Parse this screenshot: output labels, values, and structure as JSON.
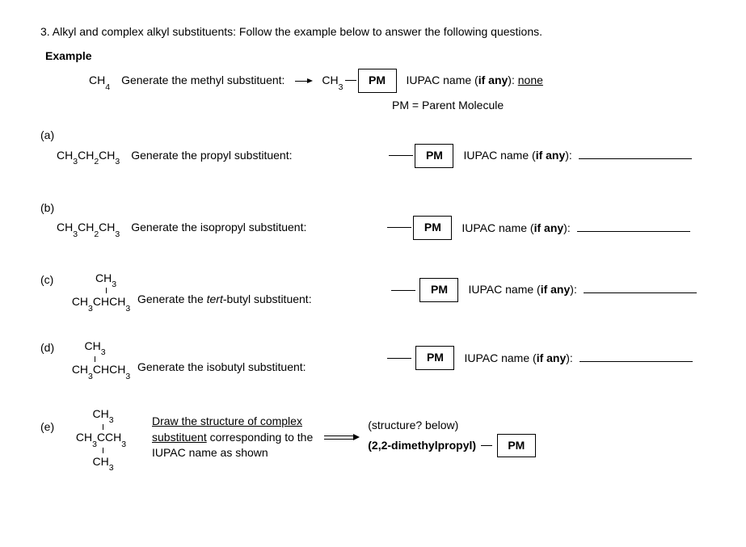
{
  "colors": {
    "text": "#000000",
    "background": "#ffffff",
    "border": "#000000"
  },
  "typography": {
    "font_family": "Arial, Helvetica, sans-serif",
    "base_size_pt": 11
  },
  "intro": "3. Alkyl and complex alkyl substituents: Follow the example below to answer the following questions.",
  "example_label": "Example",
  "example": {
    "precursor_formula_html": "CH<sub>4</sub>",
    "instruction": "Generate the methyl substituent:",
    "product_formula_html": "CH<sub>3</sub>",
    "pm_label": "PM",
    "iupac_prefix": "IUPAC name (",
    "if_any": "if any",
    "iupac_suffix": "): ",
    "iupac_answer": "none"
  },
  "pm_caption": "PM = Parent Molecule",
  "parts": {
    "a": {
      "label": "(a)",
      "precursor_formula_html": "CH<sub>3</sub>CH<sub>2</sub>CH<sub>3</sub>",
      "instruction": "Generate the propyl substituent:",
      "pm_label": "PM",
      "iupac_prefix": "IUPAC name (",
      "if_any": "if any",
      "iupac_suffix": "): "
    },
    "b": {
      "label": "(b)",
      "precursor_formula_html": "CH<sub>3</sub>CH<sub>2</sub>CH<sub>3</sub>",
      "instruction": "Generate the isopropyl substituent:",
      "pm_label": "PM",
      "iupac_prefix": "IUPAC name (",
      "if_any": "if any",
      "iupac_suffix": "): "
    },
    "c": {
      "label": "(c)",
      "top_formula_html": "CH<sub>3</sub>",
      "precursor_formula_html": "CH<sub>3</sub>CHCH<sub>3</sub>",
      "instruction_pre": "Generate the ",
      "instruction_ital": "tert",
      "instruction_post": "-butyl substituent:",
      "pm_label": "PM",
      "iupac_prefix": "IUPAC name (",
      "if_any": "if any",
      "iupac_suffix": "): "
    },
    "d": {
      "label": "(d)",
      "top_formula_html": "CH<sub>3</sub>",
      "precursor_formula_html": "CH<sub>3</sub>CHCH<sub>3</sub>",
      "instruction": "Generate the isobutyl substituent:",
      "pm_label": "PM",
      "iupac_prefix": "IUPAC name (",
      "if_any": "if any",
      "iupac_suffix": "): "
    },
    "e": {
      "label": "(e)",
      "top_formula_html": "CH<sub>3</sub>",
      "mid_formula_html": "CH<sub>3</sub>CCH<sub>3</sub>",
      "bot_formula_html": "CH<sub>3</sub>",
      "draw_line1": "Draw the structure of complex",
      "draw_line2_u": "substituent",
      "draw_line2_rest": " corresponding to the",
      "draw_line3": "IUPAC name as shown",
      "structure_hint": "(structure? below)",
      "name_bold": "(2,2-dimethylpropyl)",
      "pm_label": "PM"
    }
  }
}
